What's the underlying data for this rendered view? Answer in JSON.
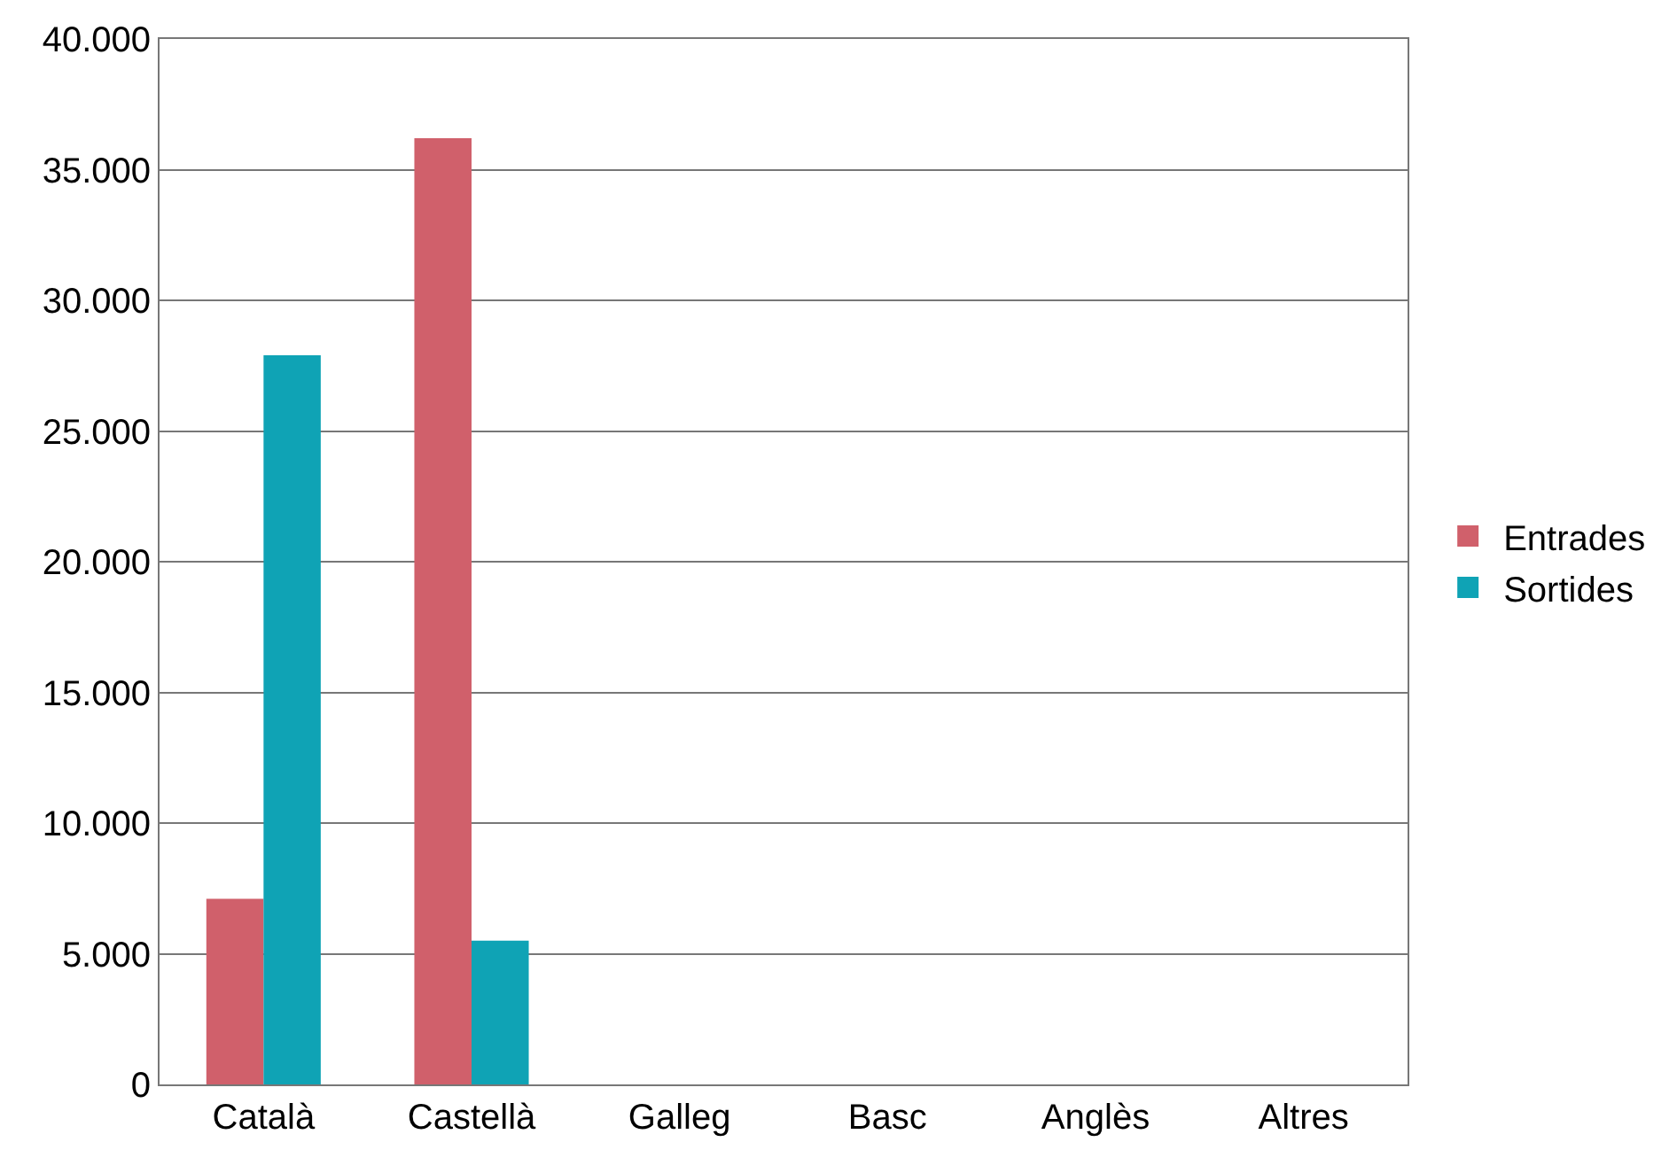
{
  "chart_data": {
    "type": "bar",
    "categories": [
      "Català",
      "Castellà",
      "Galleg",
      "Basc",
      "Anglès",
      "Altres"
    ],
    "series": [
      {
        "name": "Entrades",
        "color": "#d0606b",
        "values": [
          7100,
          36200,
          0,
          0,
          0,
          0
        ]
      },
      {
        "name": "Sortides",
        "color": "#0fa3b5",
        "values": [
          27900,
          5500,
          0,
          0,
          0,
          0
        ]
      }
    ],
    "ylim": [
      0,
      40000
    ],
    "yticks": [
      {
        "value": 0,
        "label": "0"
      },
      {
        "value": 5000,
        "label": "5.000"
      },
      {
        "value": 10000,
        "label": "10.000"
      },
      {
        "value": 15000,
        "label": "15.000"
      },
      {
        "value": 20000,
        "label": "20.000"
      },
      {
        "value": 25000,
        "label": "25.000"
      },
      {
        "value": 30000,
        "label": "30.000"
      },
      {
        "value": 35000,
        "label": "35.000"
      },
      {
        "value": 40000,
        "label": "40.000"
      }
    ],
    "grid": "y",
    "legend": "right"
  }
}
